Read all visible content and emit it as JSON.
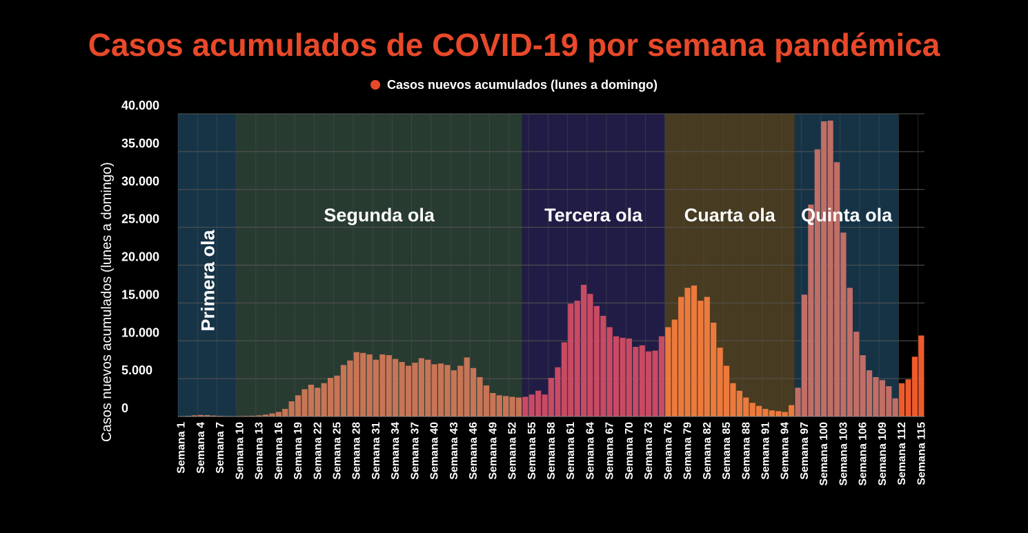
{
  "chart_data": {
    "type": "bar",
    "title": "Casos acumulados de COVID-19 por semana pandémica",
    "ylabel": "Casos nuevos acumulados (lunes a domingo)",
    "xlabel": "",
    "legend": {
      "placement": "top-center",
      "entries": [
        "Casos nuevos acumulados (lunes a domingo)"
      ]
    },
    "ylim": [
      0,
      40000
    ],
    "yticks": [
      0,
      5000,
      10000,
      15000,
      20000,
      25000,
      30000,
      35000,
      40000
    ],
    "ytick_labels": [
      "0",
      "5.000",
      "10.000",
      "15.000",
      "20.000",
      "25.000",
      "30.000",
      "35.000",
      "40.000"
    ],
    "grid": true,
    "x_labels_every": 3,
    "category_prefix": "Semana",
    "weeks": [
      1,
      2,
      3,
      4,
      5,
      6,
      7,
      8,
      9,
      10,
      11,
      12,
      13,
      14,
      15,
      16,
      17,
      18,
      19,
      20,
      21,
      22,
      23,
      24,
      25,
      26,
      27,
      28,
      29,
      30,
      31,
      32,
      33,
      34,
      35,
      36,
      37,
      38,
      39,
      40,
      41,
      42,
      43,
      44,
      45,
      46,
      47,
      48,
      49,
      50,
      51,
      52,
      53,
      54,
      55,
      56,
      57,
      58,
      59,
      60,
      61,
      62,
      63,
      64,
      65,
      66,
      67,
      68,
      69,
      70,
      71,
      72,
      73,
      74,
      75,
      76,
      77,
      78,
      79,
      80,
      81,
      82,
      83,
      84,
      85,
      86,
      87,
      88,
      89,
      90,
      91,
      92,
      93,
      94,
      95,
      96,
      97,
      98,
      99,
      100,
      101,
      102,
      103,
      104,
      105,
      106,
      107,
      108,
      109,
      110,
      111,
      112,
      113,
      114,
      115
    ],
    "values": [
      0,
      80,
      150,
      200,
      180,
      120,
      80,
      60,
      50,
      60,
      80,
      100,
      150,
      250,
      400,
      600,
      1000,
      2000,
      2800,
      3600,
      4200,
      3800,
      4400,
      5100,
      5400,
      6800,
      7400,
      8500,
      8400,
      8200,
      7500,
      8200,
      8100,
      7600,
      7200,
      6700,
      7100,
      7700,
      7500,
      6900,
      7000,
      6800,
      6100,
      6700,
      7800,
      6400,
      5200,
      4100,
      3100,
      2800,
      2700,
      2600,
      2500,
      2600,
      2900,
      3400,
      2900,
      5100,
      6500,
      9800,
      14900,
      15300,
      17400,
      16200,
      14600,
      13300,
      11800,
      10600,
      10400,
      10300,
      9200,
      9400,
      8600,
      8700,
      10600,
      11800,
      12800,
      15800,
      17000,
      17300,
      15300,
      15800,
      12400,
      9100,
      6700,
      4400,
      3400,
      2500,
      1800,
      1400,
      1000,
      800,
      700,
      600,
      1500,
      3800,
      16100,
      28000,
      35300,
      39000,
      39100,
      33600,
      24300,
      17000,
      11200,
      8100,
      6100,
      5200,
      4800,
      4000,
      2400,
      4400,
      4900,
      7900,
      10700
    ],
    "colors": {
      "bar_wave2": "#c77556",
      "bar_wave3": "#c84a63",
      "bar_wave4": "#ec7a3c",
      "bar_wave5": "#c06e66",
      "bar_current": "#ef5a2b",
      "band_wave1": "#173447",
      "band_wave2": "#283b31",
      "band_wave3": "#211c45",
      "band_wave4": "#473b21",
      "band_wave5": "#163346",
      "title": "#e8492a",
      "grid": "#555555"
    },
    "waves": [
      {
        "label": "Primera ola",
        "from_week": 1,
        "to_week": 9,
        "band": "band_wave1",
        "bar": "bar_wave2",
        "orientation": "vertical"
      },
      {
        "label": "Segunda ola",
        "from_week": 10,
        "to_week": 53,
        "band": "band_wave2",
        "bar": "bar_wave2",
        "orientation": "horizontal"
      },
      {
        "label": "Tercera ola",
        "from_week": 54,
        "to_week": 75,
        "band": "band_wave3",
        "bar": "bar_wave3",
        "orientation": "horizontal"
      },
      {
        "label": "Cuarta ola",
        "from_week": 76,
        "to_week": 95,
        "band": "band_wave4",
        "bar": "bar_wave4",
        "orientation": "horizontal"
      },
      {
        "label": "Quinta ola",
        "from_week": 96,
        "to_week": 111,
        "band": "band_wave5",
        "bar": "bar_wave5",
        "orientation": "horizontal"
      }
    ],
    "current_period": {
      "from_week": 112,
      "to_week": 115,
      "bar": "bar_current"
    }
  }
}
